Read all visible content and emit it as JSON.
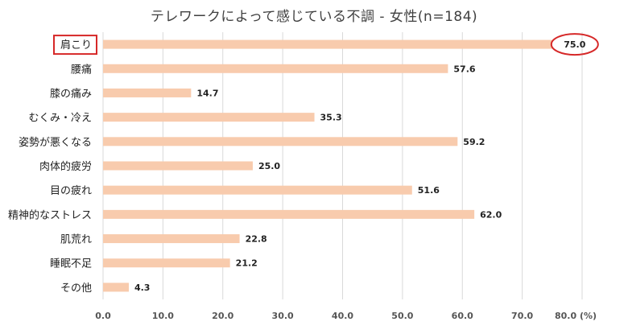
{
  "chart_data": {
    "type": "bar",
    "orientation": "horizontal",
    "title": "テレワークによって感じている不調 - 女性(n=184)",
    "categories": [
      "肩こり",
      "腰痛",
      "膝の痛み",
      "むくみ・冷え",
      "姿勢が悪くなる",
      "肉体的疲労",
      "目の疲れ",
      "精神的なストレス",
      "肌荒れ",
      "睡眠不足",
      "その他"
    ],
    "values": [
      75.0,
      57.6,
      14.7,
      35.3,
      59.2,
      25.0,
      51.6,
      62.0,
      22.8,
      21.2,
      4.3
    ],
    "value_labels": [
      "75.0",
      "57.6",
      "14.7",
      "35.3",
      "59.2",
      "25.0",
      "51.6",
      "62.0",
      "22.8",
      "21.2",
      "4.3"
    ],
    "xlim": [
      0,
      80
    ],
    "xticks": [
      "0.0",
      "10.0",
      "20.0",
      "30.0",
      "40.0",
      "50.0",
      "60.0",
      "70.0",
      "80.0 (%)"
    ],
    "grid": "vertical",
    "legend": "none",
    "highlight_category": "肩こり",
    "highlight_value": "75.0",
    "bar_color": "#f8cbad",
    "highlight_color": "#d62828",
    "grid_color": "#d9d9d9"
  }
}
